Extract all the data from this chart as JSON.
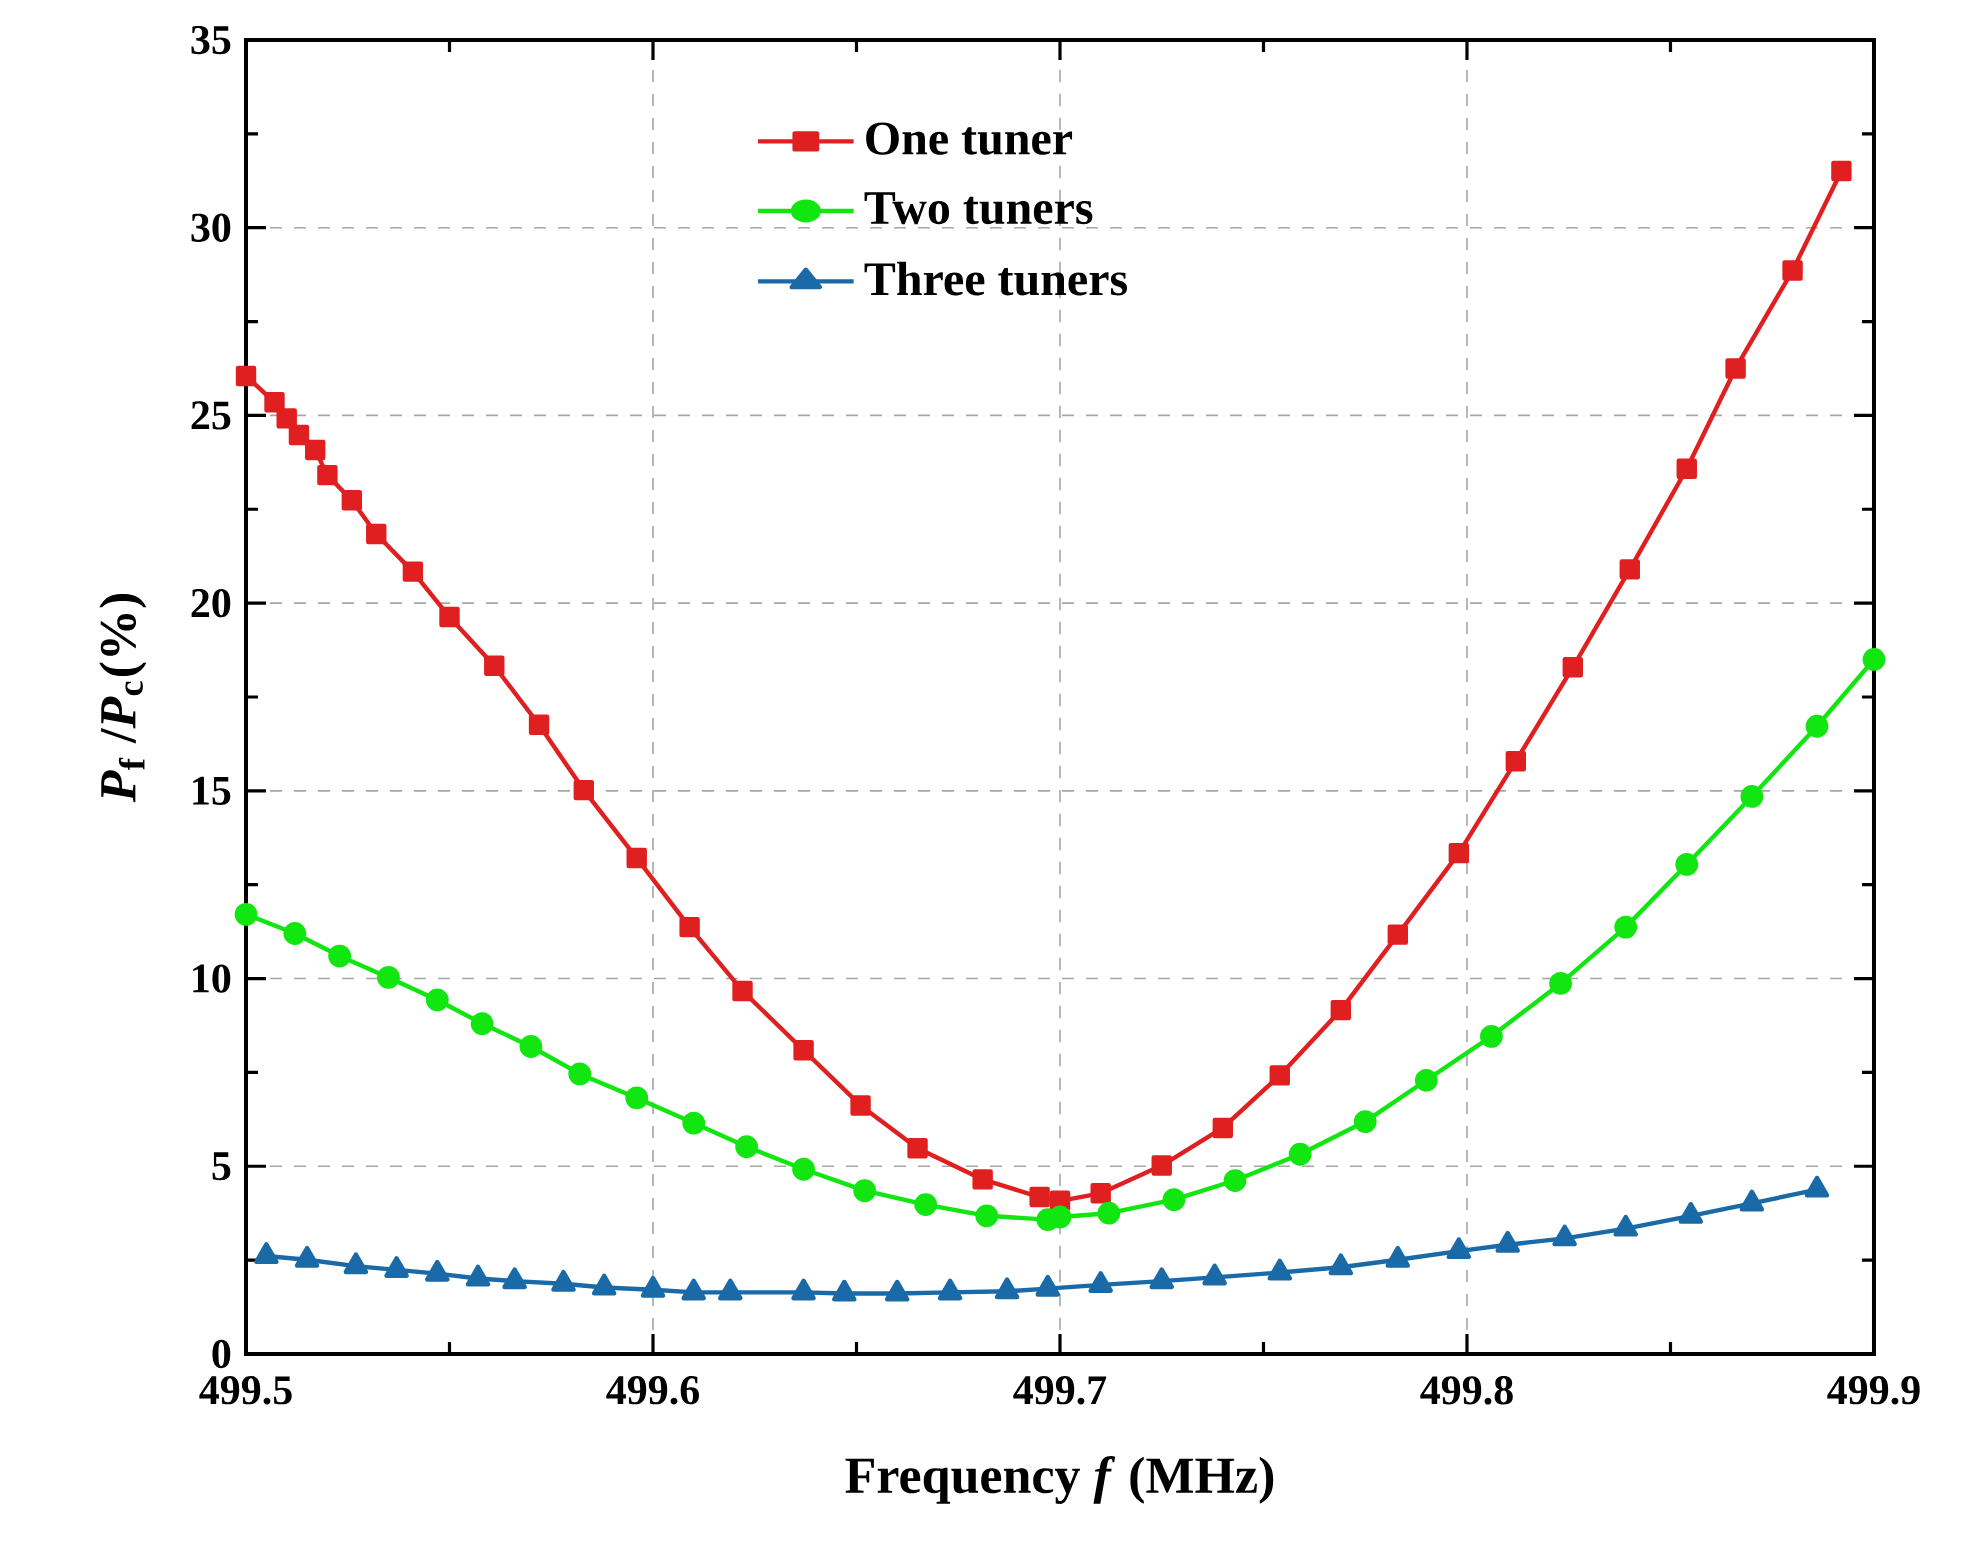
{
  "chart_data": {
    "type": "line",
    "xlabel": "Frequency *f* (MHz)",
    "ylabel": "*P*$_{f}$ /*P*$_{c}$(%)",
    "xlim": [
      499.5,
      499.9
    ],
    "ylim": [
      0,
      35
    ],
    "xticks": [
      499.5,
      499.6,
      499.7,
      499.8,
      499.9
    ],
    "yticks": [
      0,
      5,
      10,
      15,
      20,
      25,
      30,
      35
    ],
    "grid": true,
    "legend": "top",
    "line_style": "solid",
    "series": [
      {
        "name": "One tuner",
        "color": "#e02020",
        "marker": "square",
        "x": [
          499.5,
          499.507,
          499.51,
          499.513,
          499.517,
          499.52,
          499.526,
          499.532,
          499.541,
          499.55,
          499.561,
          499.572,
          499.583,
          499.596,
          499.609,
          499.622,
          499.637,
          499.651,
          499.665,
          499.681,
          499.695,
          499.7,
          499.71,
          499.725,
          499.74,
          499.754,
          499.769,
          499.783,
          499.798,
          499.812,
          499.826,
          499.84,
          499.854,
          499.866,
          499.88,
          499.892
        ],
        "values": [
          26.05,
          25.35,
          24.92,
          24.48,
          24.08,
          23.41,
          22.74,
          21.84,
          20.84,
          19.63,
          18.33,
          16.76,
          15.02,
          13.21,
          11.37,
          9.67,
          8.09,
          6.62,
          5.48,
          4.65,
          4.18,
          4.08,
          4.28,
          5.02,
          6.02,
          7.42,
          9.16,
          11.17,
          13.34,
          15.79,
          18.29,
          20.9,
          23.58,
          26.25,
          28.86,
          31.51
        ]
      },
      {
        "name": "Two tuners",
        "color": "#11e611",
        "marker": "circle",
        "x": [
          499.5,
          499.512,
          499.523,
          499.535,
          499.547,
          499.558,
          499.57,
          499.582,
          499.596,
          499.61,
          499.623,
          499.637,
          499.652,
          499.667,
          499.682,
          499.697,
          499.7,
          499.712,
          499.728,
          499.743,
          499.759,
          499.775,
          499.79,
          499.806,
          499.823,
          499.839,
          499.854,
          499.87,
          499.886,
          499.9
        ],
        "values": [
          11.71,
          11.2,
          10.6,
          10.03,
          9.43,
          8.8,
          8.19,
          7.46,
          6.82,
          6.15,
          5.52,
          4.92,
          4.35,
          3.98,
          3.68,
          3.58,
          3.65,
          3.75,
          4.11,
          4.62,
          5.32,
          6.19,
          7.29,
          8.46,
          9.87,
          11.37,
          13.04,
          14.85,
          16.72,
          18.5
        ]
      },
      {
        "name": "Three tuners",
        "color": "#1a6aa8",
        "marker": "triangle",
        "x": [
          499.505,
          499.515,
          499.527,
          499.537,
          499.547,
          499.557,
          499.566,
          499.578,
          499.588,
          499.6,
          499.61,
          499.619,
          499.637,
          499.647,
          499.66,
          499.673,
          499.687,
          499.697,
          499.71,
          499.725,
          499.738,
          499.754,
          499.769,
          499.783,
          499.798,
          499.81,
          499.824,
          499.839,
          499.855,
          499.87,
          499.886
        ],
        "values": [
          2.61,
          2.51,
          2.34,
          2.24,
          2.14,
          2.01,
          1.94,
          1.87,
          1.77,
          1.71,
          1.64,
          1.64,
          1.64,
          1.61,
          1.61,
          1.64,
          1.67,
          1.74,
          1.84,
          1.94,
          2.04,
          2.17,
          2.31,
          2.51,
          2.74,
          2.91,
          3.08,
          3.34,
          3.68,
          4.01,
          4.38
        ]
      }
    ]
  }
}
